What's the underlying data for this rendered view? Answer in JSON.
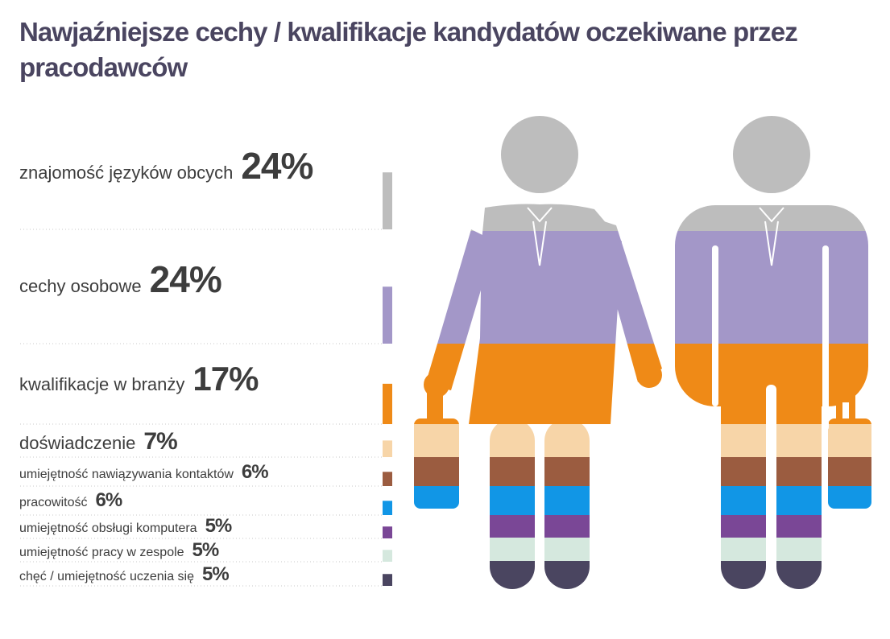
{
  "chart_data": {
    "type": "pictogram-bar",
    "title": "Nawjaźniejsze cechy / kwalifikacje kandydatów oczekiwane przez pracodawców",
    "categories": [
      "znajomość języków obcych",
      "cechy osobowe",
      "kwalifikacje w branży",
      "doświadczenie",
      "umiejętność nawiązywania kontaktów",
      "pracowitość",
      "umiejętność obsługi komputera",
      "umiejętność pracy w zespole",
      "chęć / umiejętność uczenia się"
    ],
    "values": [
      24,
      24,
      17,
      7,
      6,
      6,
      5,
      5,
      5
    ],
    "value_labels": [
      "24%",
      "24%",
      "17%",
      "7%",
      "6%",
      "6%",
      "5%",
      "5%",
      "5%"
    ],
    "colors": [
      "#bdbdbd",
      "#a397c8",
      "#ef8a17",
      "#f7d5a8",
      "#9b5c40",
      "#1196e6",
      "#7a4796",
      "#d5e8de",
      "#4a4560"
    ]
  }
}
